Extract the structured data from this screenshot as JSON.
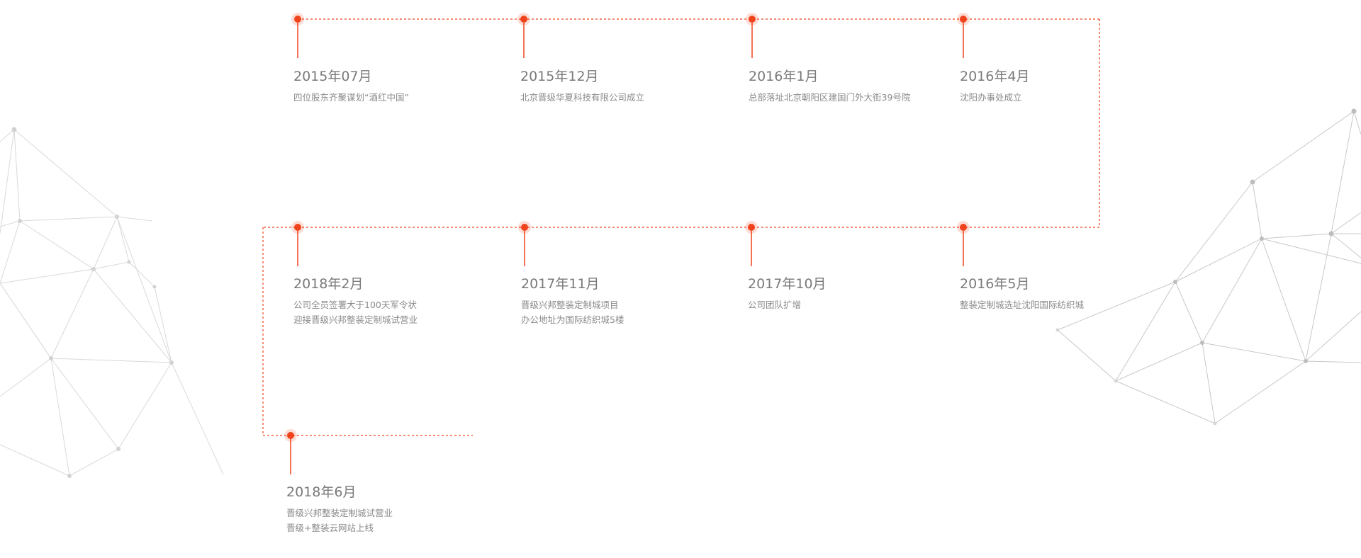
{
  "timeline": {
    "accent_color": "#f0431c",
    "events": [
      {
        "date": "2015年07月",
        "lines": [
          "四位股东齐聚谋划“酒红中国”"
        ]
      },
      {
        "date": "2015年12月",
        "lines": [
          "北京晋级华夏科技有限公司成立"
        ]
      },
      {
        "date": "2016年1月",
        "lines": [
          "总部落址北京朝阳区建国门外大街39号院"
        ]
      },
      {
        "date": "2016年4月",
        "lines": [
          "沈阳办事处成立"
        ]
      },
      {
        "date": "2016年5月",
        "lines": [
          "整装定制城选址沈阳国际纺织城"
        ]
      },
      {
        "date": "2017年10月",
        "lines": [
          "公司团队扩增"
        ]
      },
      {
        "date": "2017年11月",
        "lines": [
          "晋级兴邦整装定制城项目",
          "办公地址为国际纺织城5楼"
        ]
      },
      {
        "date": "2018年2月",
        "lines": [
          "公司全员签署大于100天军令状",
          "迎接晋级兴邦整装定制城试营业"
        ]
      },
      {
        "date": "2018年6月",
        "lines": [
          "晋级兴邦整装定制城试营业",
          "晋级+整装云网站上线"
        ]
      }
    ]
  }
}
